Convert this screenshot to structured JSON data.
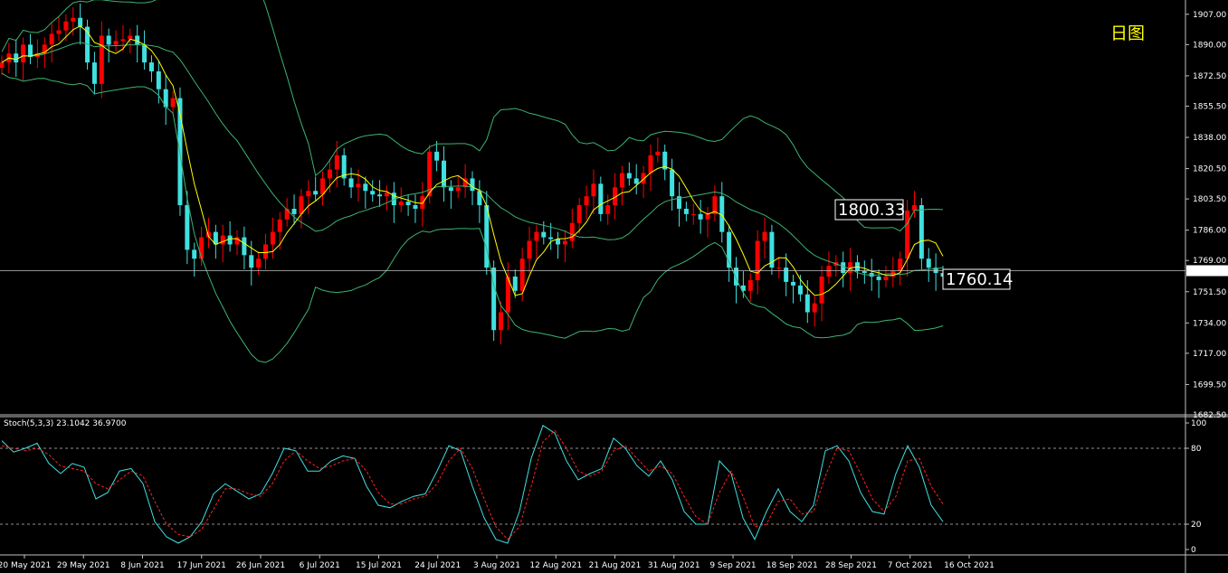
{
  "period_label": "日图",
  "current_price_tag": "1763.30",
  "annotations": {
    "high_label": "1800.33",
    "last_label": "1760.14"
  },
  "stoch_header": "Stoch(5,3,3) 23.1042 36.9700",
  "colors": {
    "background": "#000000",
    "bull_candle": "#ff0000",
    "bear_candle": "#40e0e0",
    "bollinger": "#3cb371",
    "ma_line": "#ffff00",
    "stoch_main": "#40e0e0",
    "stoch_signal": "#ff2020",
    "text": "#ffffff"
  },
  "chart_data": [
    {
      "type": "candlestick",
      "title": "",
      "price_axis": {
        "ylim": [
          1682.5,
          1915
        ],
        "ticks": [
          "1907.00",
          "1890.00",
          "1872.50",
          "1855.50",
          "1838.00",
          "1820.50",
          "1803.50",
          "1786.00",
          "1769.00",
          "1751.50",
          "1734.00",
          "1717.00",
          "1699.50",
          "1682.50"
        ]
      },
      "x_ticks": [
        "20 May 2021",
        "29 May 2021",
        "8 Jun 2021",
        "17 Jun 2021",
        "26 Jun 2021",
        "6 Jul 2021",
        "15 Jul 2021",
        "24 Jul 2021",
        "3 Aug 2021",
        "12 Aug 2021",
        "21 Aug 2021",
        "31 Aug 2021",
        "9 Sep 2021",
        "18 Sep 2021",
        "28 Sep 2021",
        "7 Oct 2021",
        "16 Oct 2021"
      ],
      "horizontal_line": 1763.3,
      "overlays": [
        "Bollinger Bands",
        "Moving Average"
      ],
      "approx_closes": [
        1880,
        1885,
        1880,
        1890,
        1883,
        1885,
        1890,
        1896,
        1898,
        1903,
        1905,
        1900,
        1880,
        1868,
        1895,
        1890,
        1892,
        1893,
        1895,
        1890,
        1880,
        1875,
        1865,
        1855,
        1860,
        1800,
        1775,
        1770,
        1782,
        1785,
        1778,
        1783,
        1778,
        1782,
        1772,
        1765,
        1770,
        1778,
        1785,
        1792,
        1798,
        1795,
        1805,
        1808,
        1806,
        1815,
        1820,
        1828,
        1815,
        1810,
        1812,
        1808,
        1806,
        1805,
        1807,
        1800,
        1802,
        1800,
        1798,
        1805,
        1830,
        1825,
        1810,
        1808,
        1810,
        1815,
        1808,
        1800,
        1765,
        1730,
        1740,
        1760,
        1752,
        1770,
        1780,
        1785,
        1782,
        1781,
        1778,
        1780,
        1790,
        1800,
        1805,
        1812,
        1795,
        1800,
        1810,
        1818,
        1815,
        1812,
        1818,
        1828,
        1830,
        1820,
        1805,
        1798,
        1795,
        1795,
        1792,
        1795,
        1805,
        1785,
        1765,
        1755,
        1752,
        1758,
        1780,
        1785,
        1765,
        1765,
        1757,
        1755,
        1750,
        1740,
        1745,
        1760,
        1766,
        1768,
        1762,
        1768,
        1763,
        1762,
        1760,
        1758,
        1760,
        1763,
        1770,
        1797,
        1800,
        1770,
        1765,
        1762,
        1760
      ]
    },
    {
      "type": "line",
      "title": "",
      "indicator": "Stoch(5,3,3)",
      "main_value": 23.1042,
      "signal_value": 36.97,
      "ylim": [
        0,
        100
      ],
      "ticks": [
        "100",
        "80",
        "20",
        "0"
      ],
      "levels": [
        80,
        20
      ],
      "series": [
        {
          "values": [
            86,
            77,
            80,
            84,
            68,
            60,
            68,
            65,
            40,
            45,
            62,
            64,
            52,
            22,
            10,
            5,
            10,
            22,
            44,
            52,
            46,
            40,
            44,
            60,
            80,
            78,
            62,
            62,
            70,
            74,
            72,
            50,
            35,
            33,
            38,
            42,
            44,
            62,
            82,
            78,
            50,
            25,
            8,
            5,
            30,
            72,
            98,
            92,
            70,
            55,
            60,
            64,
            88,
            80,
            66,
            58,
            70,
            55,
            30,
            20,
            20,
            70,
            60,
            25,
            8,
            30,
            48,
            30,
            22,
            35,
            78,
            82,
            70,
            45,
            30,
            28,
            60,
            82,
            65,
            35,
            22
          ]
        },
        {
          "values": [
            82,
            80,
            78,
            80,
            75,
            66,
            64,
            62,
            52,
            48,
            55,
            62,
            58,
            38,
            20,
            12,
            10,
            16,
            32,
            48,
            48,
            44,
            42,
            52,
            70,
            78,
            70,
            64,
            66,
            70,
            72,
            62,
            45,
            36,
            36,
            40,
            42,
            52,
            70,
            80,
            64,
            40,
            18,
            8,
            18,
            50,
            85,
            94,
            80,
            62,
            58,
            62,
            78,
            82,
            72,
            62,
            66,
            60,
            42,
            26,
            20,
            45,
            62,
            42,
            18,
            20,
            38,
            40,
            28,
            30,
            58,
            80,
            78,
            60,
            40,
            30,
            42,
            70,
            72,
            50,
            36
          ]
        }
      ]
    }
  ]
}
